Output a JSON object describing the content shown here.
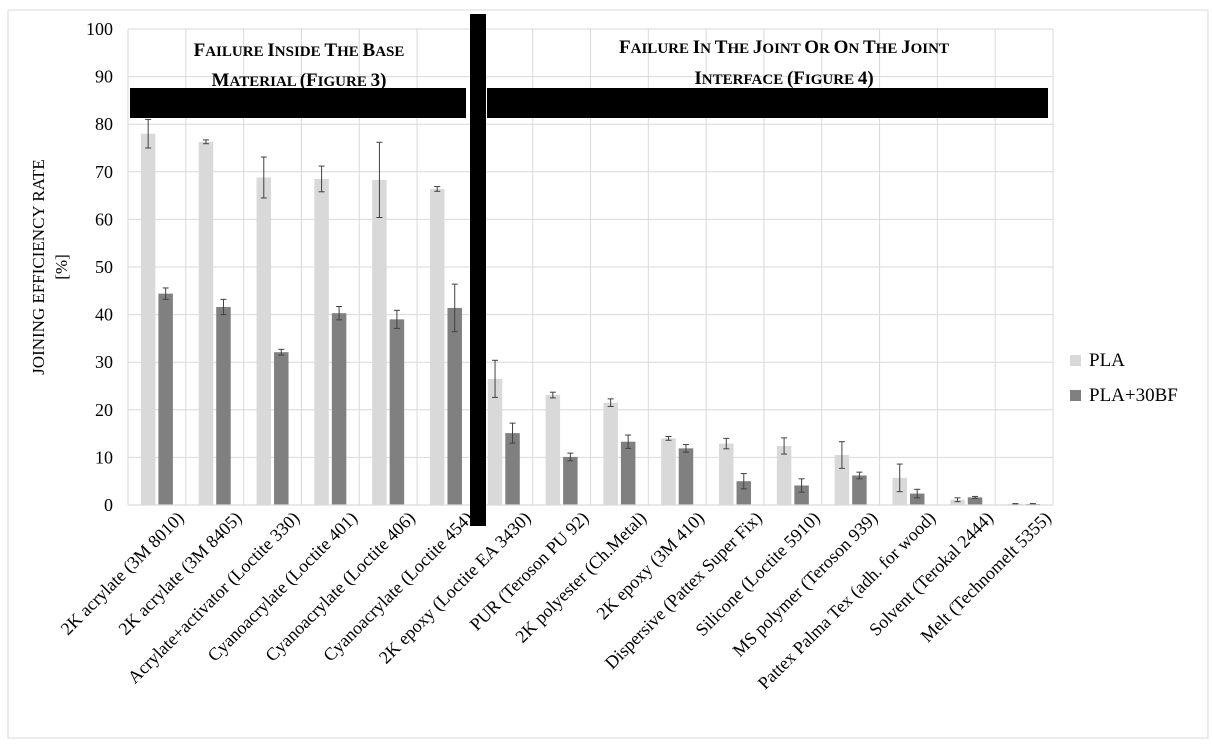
{
  "chart_data": {
    "type": "bar",
    "title": "",
    "ylabel_lines": [
      "JOINING EFFICIENCY RATE",
      "[%]"
    ],
    "xlabel": "",
    "ylim": [
      0,
      100
    ],
    "yticks": [
      0,
      10,
      20,
      30,
      40,
      50,
      60,
      70,
      80,
      90,
      100
    ],
    "grid": true,
    "legend_position": "right",
    "categories": [
      "2K acrylate (3M 8010)",
      "2K acrylate (3M 8405)",
      "Acrylate+activator (Loctite 330)",
      "Cyanoacrylate (Loctite 401)",
      "Cyanoacrylate (Loctite 406)",
      "Cyanoacrylate (Loctite 454)",
      "2K epoxy (Loctite EA 3430)",
      "PUR (Teroson PU 92)",
      "2K polyester (Ch.Metal)",
      "2K epoxy (3M 410)",
      "Dispersive (Pattex Super Fix)",
      "Silicone (Loctite 5910)",
      "MS polymer (Teroson 939)",
      "Pattex Palma Tex (adh. for wood)",
      "Solvent (Terokal 2444)",
      "Melt (Technomelt 5355)"
    ],
    "series": [
      {
        "name": "PLA",
        "color": "#d9d9d9",
        "values": [
          78,
          76.3,
          68.8,
          68.5,
          68.3,
          66.4,
          26.5,
          23.1,
          21.5,
          14.0,
          12.9,
          12.4,
          10.5,
          5.7,
          1.1,
          0.2
        ],
        "errors": [
          3.0,
          0.4,
          4.3,
          2.7,
          7.9,
          0.5,
          3.9,
          0.6,
          0.8,
          0.4,
          1.1,
          1.7,
          2.8,
          2.9,
          0.4,
          0.1
        ]
      },
      {
        "name": "PLA+30BF",
        "color": "#808080",
        "values": [
          44.4,
          41.6,
          32.1,
          40.3,
          39.0,
          41.4,
          15.1,
          10.1,
          13.3,
          11.9,
          5.0,
          4.1,
          6.2,
          2.4,
          1.6,
          0.2
        ],
        "errors": [
          1.2,
          1.6,
          0.6,
          1.4,
          1.9,
          5.0,
          2.1,
          0.8,
          1.4,
          0.8,
          1.6,
          1.4,
          0.7,
          0.9,
          0.2,
          0.1
        ]
      }
    ],
    "annotations": [
      {
        "id": "left",
        "lines": [
          "FAILURE INSIDE THE BASE",
          "MATERIAL (FIGURE 3)"
        ]
      },
      {
        "id": "right",
        "lines": [
          "FAILURE IN THE JOINT OR ON THE JOINT",
          "INTERFACE (FIGURE 4)"
        ]
      }
    ]
  }
}
